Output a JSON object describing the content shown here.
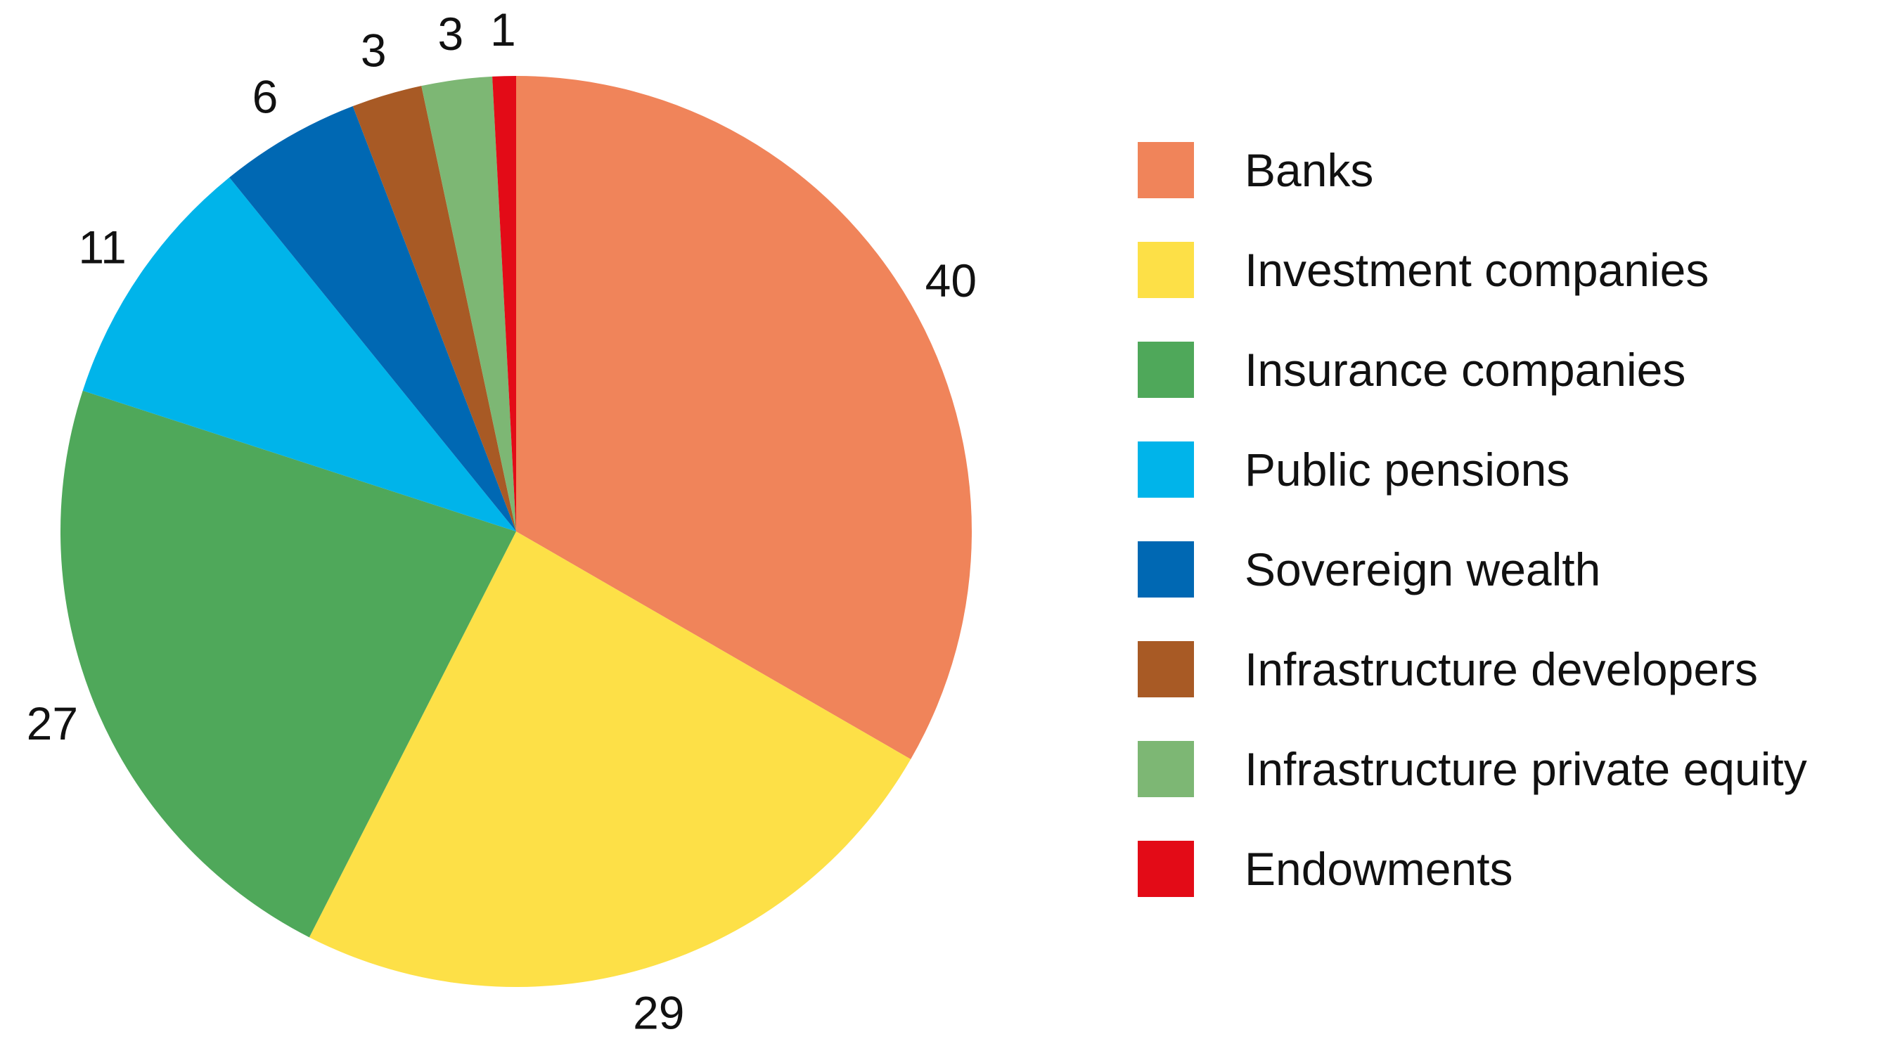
{
  "chart_data": {
    "type": "pie",
    "title": "",
    "start_angle_deg": 0,
    "direction": "clockwise",
    "legend_position": "right",
    "slices": [
      {
        "label": "Banks",
        "value": 40,
        "value_label": "40",
        "color": "#F0845A"
      },
      {
        "label": "Investment companies",
        "value": 29,
        "value_label": "29",
        "color": "#FDE047"
      },
      {
        "label": "Insurance companies",
        "value": 27,
        "value_label": "27",
        "color": "#4FA85A"
      },
      {
        "label": "Public pensions",
        "value": 11,
        "value_label": "11",
        "color": "#00B4EA"
      },
      {
        "label": "Sovereign wealth",
        "value": 6,
        "value_label": "6",
        "color": "#0068B3"
      },
      {
        "label": "Infrastructure developers",
        "value": 3,
        "value_label": "3",
        "color": "#A85A25"
      },
      {
        "label": "Infrastructure private equity",
        "value": 3,
        "value_label": "3",
        "color": "#7DB774"
      },
      {
        "label": "Endowments",
        "value": 1,
        "value_label": "1",
        "color": "#E30B17"
      }
    ]
  }
}
